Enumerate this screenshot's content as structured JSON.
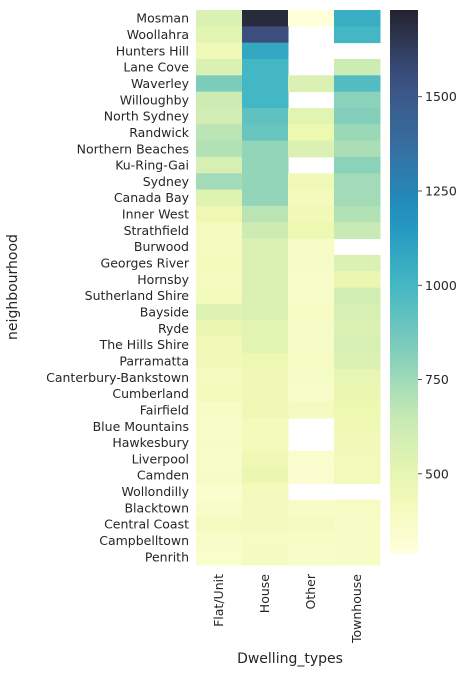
{
  "chart_data": {
    "type": "heatmap",
    "xlabel": "Dwelling_types",
    "ylabel": "neighbourhood",
    "columns": [
      "Flat/Unit",
      "House",
      "Other",
      "Townhouse"
    ],
    "rows": [
      "Mosman",
      "Woollahra",
      "Hunters Hill",
      "Lane Cove",
      "Waverley",
      "Willoughby",
      "North Sydney",
      "Randwick",
      "Northern Beaches",
      "Ku-Ring-Gai",
      "Sydney",
      "Canada Bay",
      "Inner West",
      "Strathfield",
      "Burwood",
      "Georges River",
      "Hornsby",
      "Sutherland Shire",
      "Bayside",
      "Ryde",
      "The Hills Shire",
      "Parramatta",
      "Canterbury-Bankstown",
      "Cumberland",
      "Fairfield",
      "Blue Mountains",
      "Hawkesbury",
      "Liverpool",
      "Camden",
      "Wollondilly",
      "Blacktown",
      "Central Coast",
      "Campbelltown",
      "Penrith"
    ],
    "values": [
      [
        560,
        1700,
        280,
        1050
      ],
      [
        520,
        1560,
        null,
        1000
      ],
      [
        440,
        1080,
        null,
        null
      ],
      [
        560,
        1000,
        null,
        620
      ],
      [
        840,
        1000,
        560,
        960
      ],
      [
        620,
        1000,
        null,
        800
      ],
      [
        600,
        920,
        520,
        820
      ],
      [
        680,
        900,
        470,
        760
      ],
      [
        700,
        780,
        560,
        720
      ],
      [
        580,
        780,
        null,
        800
      ],
      [
        740,
        780,
        440,
        740
      ],
      [
        540,
        780,
        420,
        740
      ],
      [
        460,
        680,
        440,
        700
      ],
      [
        400,
        620,
        470,
        640
      ],
      [
        400,
        560,
        380,
        null
      ],
      [
        420,
        560,
        380,
        560
      ],
      [
        400,
        560,
        360,
        480
      ],
      [
        420,
        560,
        360,
        600
      ],
      [
        540,
        560,
        390,
        580
      ],
      [
        480,
        520,
        380,
        560
      ],
      [
        440,
        520,
        380,
        580
      ],
      [
        440,
        470,
        390,
        560
      ],
      [
        400,
        450,
        380,
        500
      ],
      [
        420,
        450,
        360,
        480
      ],
      [
        380,
        450,
        400,
        470
      ],
      [
        360,
        420,
        null,
        450
      ],
      [
        370,
        420,
        null,
        440
      ],
      [
        360,
        450,
        350,
        430
      ],
      [
        380,
        480,
        330,
        430
      ],
      [
        340,
        420,
        null,
        null
      ],
      [
        360,
        410,
        370,
        390
      ],
      [
        400,
        410,
        400,
        380
      ],
      [
        360,
        390,
        370,
        380
      ],
      [
        350,
        400,
        360,
        370
      ]
    ],
    "colorbar": {
      "vmin": 290,
      "vmax": 1730,
      "ticks": [
        500,
        750,
        1000,
        1250,
        1500
      ]
    },
    "colormap": "YlGnBu",
    "grid": false
  }
}
